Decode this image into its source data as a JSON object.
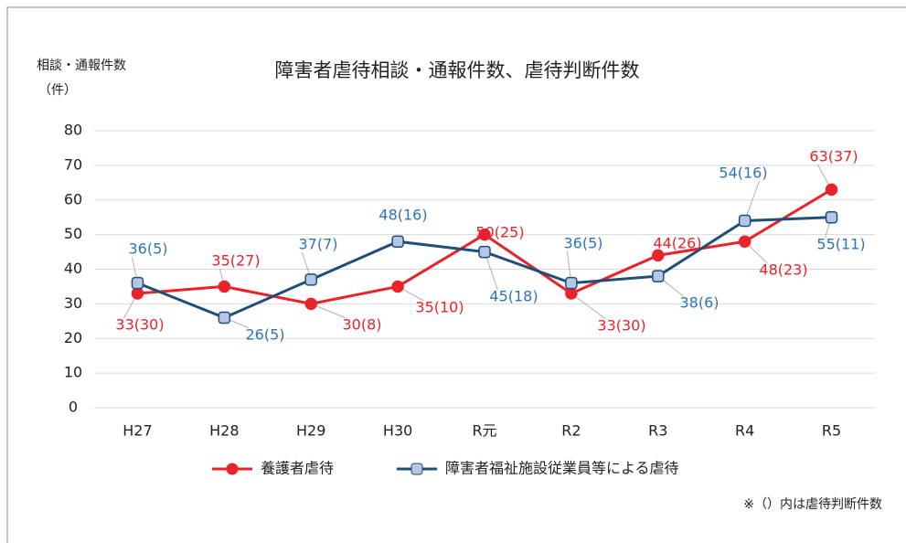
{
  "chart_data": {
    "type": "line",
    "title": "障害者虐待相談・通報件数、虐待判断件数",
    "y_label": [
      "相談・通報件数",
      "（件）"
    ],
    "categories": [
      "H27",
      "H28",
      "H29",
      "H30",
      "R元",
      "R2",
      "R3",
      "R4",
      "R5"
    ],
    "series": [
      {
        "name": "養護者虐待",
        "color": "#e8232a",
        "values": [
          33,
          35,
          30,
          35,
          50,
          33,
          44,
          48,
          63
        ],
        "value_labels": [
          "33(30)",
          "35(27)",
          "30(8)",
          "35(10)",
          "50(25)",
          "33(30)",
          "44(26)",
          "48(23)",
          "63(37)"
        ]
      },
      {
        "name": "障害者福祉施設従業員等による虐待",
        "color": "#1f4e79",
        "values": [
          36,
          26,
          37,
          48,
          45,
          36,
          38,
          54,
          55
        ],
        "value_labels": [
          "36(5)",
          "26(5)",
          "37(7)",
          "48(16)",
          "45(18)",
          "36(5)",
          "38(6)",
          "54(16)",
          "55(11)"
        ]
      }
    ],
    "ylim": [
      0,
      80
    ],
    "yticks": [
      0,
      10,
      20,
      30,
      40,
      50,
      60,
      70,
      80
    ],
    "grid": true,
    "note": "※（）内は虐待判断件数"
  }
}
